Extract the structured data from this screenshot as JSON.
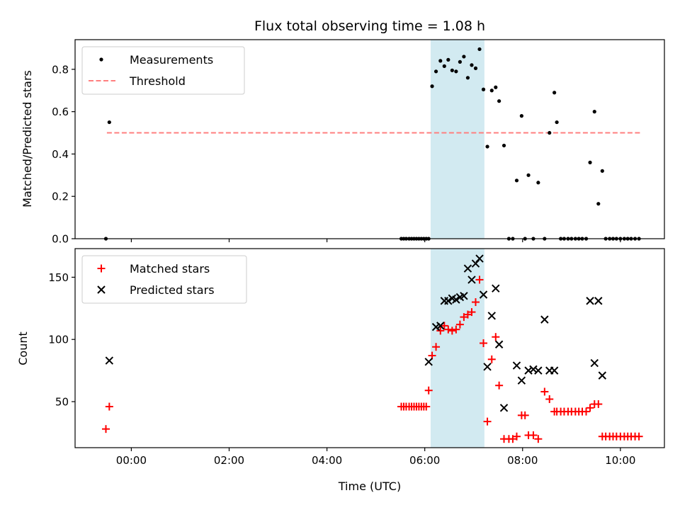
{
  "chart_data": [
    {
      "type": "scatter",
      "title": "Flux total observing time = 1.08 h",
      "ylabel": "Matched/Predicted stars",
      "xlabel": "",
      "x_unit": "hours UTC",
      "xlim": [
        -1.15,
        10.9
      ],
      "ylim": [
        0,
        0.94
      ],
      "yticks": [
        0.0,
        0.2,
        0.4,
        0.6,
        0.8
      ],
      "ytick_labels": [
        "0.0",
        "0.2",
        "0.4",
        "0.6",
        "0.8"
      ],
      "xticks": [
        0,
        2,
        4,
        6,
        8,
        10
      ],
      "legend": {
        "placement": "top-left",
        "entries": [
          "Measurements",
          "Threshold"
        ]
      },
      "highlight_span": {
        "x0": 6.12,
        "x1": 7.22,
        "color": "#add8e6"
      },
      "threshold": {
        "name": "Threshold",
        "y": 0.5,
        "x0": -0.5,
        "x1": 10.4,
        "color": "#ff7f7f",
        "style": "dashed"
      },
      "series": [
        {
          "name": "Measurements",
          "color": "#000000",
          "x": [
            -0.52,
            -0.45,
            5.52,
            5.57,
            5.62,
            5.68,
            5.73,
            5.78,
            5.83,
            5.88,
            5.93,
            5.98,
            6.03,
            6.08,
            6.15,
            6.23,
            6.32,
            6.4,
            6.48,
            6.56,
            6.64,
            6.72,
            6.8,
            6.88,
            6.96,
            7.04,
            7.12,
            7.2,
            7.28,
            7.37,
            7.45,
            7.52,
            7.62,
            7.72,
            7.8,
            7.88,
            7.98,
            8.05,
            8.12,
            8.22,
            8.32,
            8.45,
            8.55,
            8.65,
            8.7,
            8.78,
            8.85,
            8.93,
            9.0,
            9.08,
            9.15,
            9.22,
            9.3,
            9.38,
            9.47,
            9.55,
            9.63,
            9.7,
            9.78,
            9.85,
            9.92,
            10.0,
            10.08,
            10.15,
            10.22,
            10.3,
            10.38
          ],
          "y": [
            0.0,
            0.55,
            0.0,
            0.0,
            0.0,
            0.0,
            0.0,
            0.0,
            0.0,
            0.0,
            0.0,
            0.0,
            0.0,
            0.0,
            0.72,
            0.79,
            0.84,
            0.815,
            0.845,
            0.795,
            0.79,
            0.835,
            0.86,
            0.76,
            0.82,
            0.805,
            0.895,
            0.705,
            0.435,
            0.7,
            0.715,
            0.65,
            0.44,
            0.0,
            0.0,
            0.275,
            0.58,
            0.0,
            0.3,
            0.0,
            0.265,
            0.0,
            0.5,
            0.69,
            0.55,
            0.0,
            0.0,
            0.0,
            0.0,
            0.0,
            0.0,
            0.0,
            0.0,
            0.36,
            0.6,
            0.165,
            0.32,
            0.0,
            0.0,
            0.0,
            0.0,
            0.0,
            0.0,
            0.0,
            0.0,
            0.0,
            0.0
          ]
        }
      ]
    },
    {
      "type": "scatter",
      "title": "",
      "ylabel": "Count",
      "xlabel": "Time (UTC)",
      "x_unit": "hours UTC",
      "xlim": [
        -1.15,
        10.9
      ],
      "ylim": [
        13,
        173
      ],
      "yticks": [
        50,
        100,
        150
      ],
      "ytick_labels": [
        "50",
        "100",
        "150"
      ],
      "xticks": [
        0,
        2,
        4,
        6,
        8,
        10
      ],
      "xtick_labels": [
        "00:00",
        "02:00",
        "04:00",
        "06:00",
        "08:00",
        "10:00"
      ],
      "legend": {
        "placement": "top-left",
        "entries": [
          "Matched stars",
          "Predicted stars"
        ]
      },
      "highlight_span": {
        "x0": 6.12,
        "x1": 7.22,
        "color": "#add8e6"
      },
      "series": [
        {
          "name": "Matched stars",
          "color": "#ff0000",
          "marker": "plus",
          "x": [
            -0.52,
            -0.45,
            5.52,
            5.57,
            5.62,
            5.68,
            5.73,
            5.78,
            5.83,
            5.88,
            5.93,
            5.98,
            6.03,
            6.08,
            6.15,
            6.23,
            6.32,
            6.4,
            6.48,
            6.56,
            6.64,
            6.72,
            6.8,
            6.88,
            6.96,
            7.04,
            7.12,
            7.2,
            7.28,
            7.37,
            7.45,
            7.52,
            7.62,
            7.72,
            7.8,
            7.88,
            7.98,
            8.05,
            8.12,
            8.22,
            8.32,
            8.45,
            8.55,
            8.65,
            8.7,
            8.78,
            8.85,
            8.93,
            9.0,
            9.08,
            9.15,
            9.22,
            9.3,
            9.38,
            9.47,
            9.55,
            9.63,
            9.7,
            9.78,
            9.85,
            9.92,
            10.0,
            10.08,
            10.15,
            10.22,
            10.3,
            10.38
          ],
          "y": [
            28,
            46,
            46,
            46,
            46,
            46,
            46,
            46,
            46,
            46,
            46,
            46,
            46,
            59,
            87,
            94,
            107,
            111,
            108,
            107,
            108,
            112,
            118,
            120,
            122,
            130,
            148,
            97,
            34,
            84,
            102,
            63,
            20,
            20,
            20,
            22,
            39,
            39,
            23,
            23,
            20,
            58,
            52,
            42,
            42,
            42,
            42,
            42,
            42,
            42,
            42,
            42,
            42,
            45,
            48,
            48,
            22,
            22,
            22,
            22,
            22,
            22,
            22,
            22,
            22,
            22,
            22
          ]
        },
        {
          "name": "Predicted stars",
          "color": "#000000",
          "marker": "x",
          "x": [
            -0.45,
            6.08,
            6.23,
            6.32,
            6.4,
            6.48,
            6.56,
            6.64,
            6.72,
            6.8,
            6.88,
            6.96,
            7.04,
            7.12,
            7.2,
            7.28,
            7.37,
            7.45,
            7.52,
            7.62,
            7.88,
            7.98,
            8.12,
            8.22,
            8.32,
            8.45,
            8.55,
            8.65,
            9.38,
            9.47,
            9.55,
            9.63
          ],
          "y": [
            83,
            82,
            110,
            111,
            131,
            131,
            133,
            132,
            134,
            135,
            157,
            148,
            161,
            165,
            136,
            78,
            119,
            141,
            96,
            45,
            79,
            67,
            75,
            76,
            75,
            116,
            75,
            75,
            131,
            81,
            131,
            71
          ]
        }
      ]
    }
  ]
}
